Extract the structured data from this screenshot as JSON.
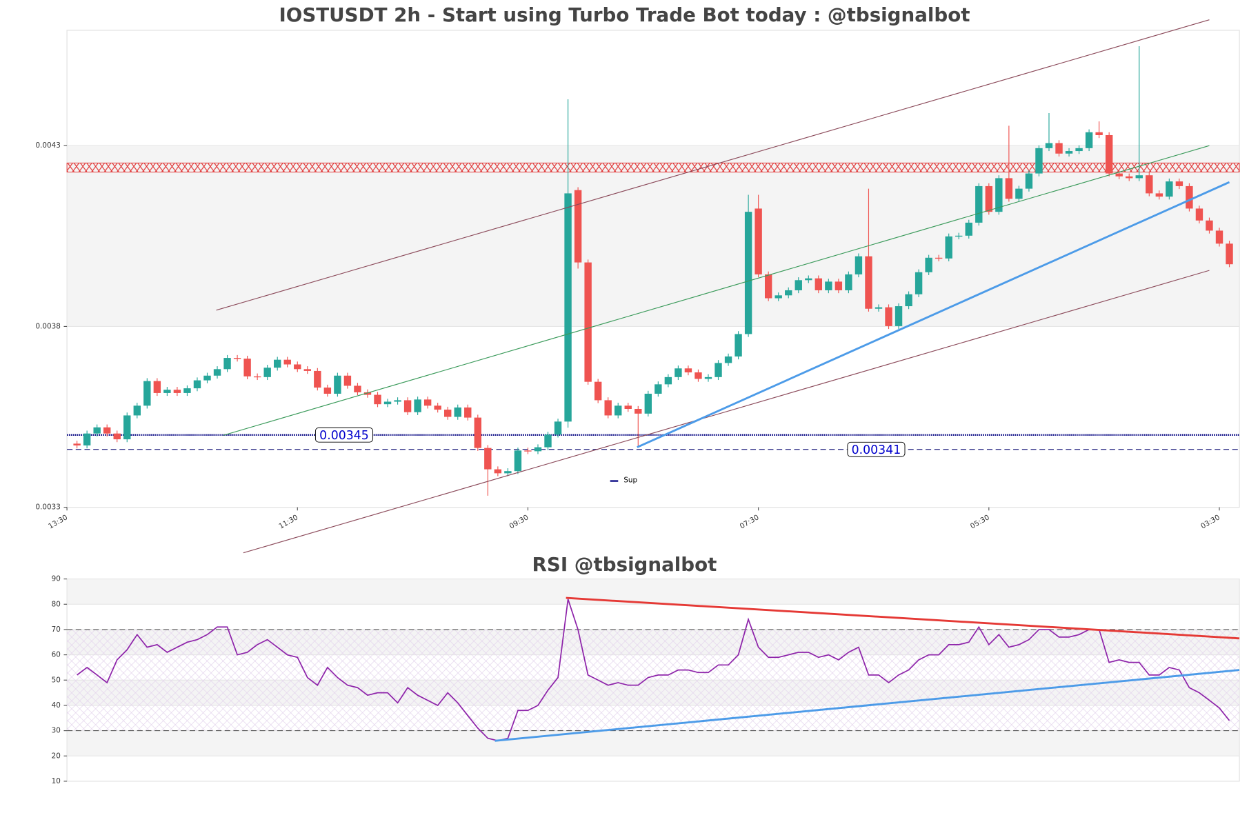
{
  "chart_data": [
    {
      "type": "candlestick",
      "title": "IOSTUSDT 2h - Start using Turbo Trade Bot today : @tbsignalbot",
      "up_color": "#26a69a",
      "down_color": "#ef5350",
      "xlim": [
        -1,
        116
      ],
      "xticks": [
        {
          "value": -1,
          "label": "13:30"
        },
        {
          "value": 22,
          "label": "11:30"
        },
        {
          "value": 45,
          "label": "09:30"
        },
        {
          "value": 68,
          "label": "07:30"
        },
        {
          "value": 91,
          "label": "05:30"
        },
        {
          "value": 114,
          "label": "03:30"
        }
      ],
      "ylim": [
        0.00325,
        0.004569
      ],
      "yticks": [
        {
          "value": 0.00325,
          "label": "0.0033"
        },
        {
          "value": 0.00375,
          "label": "0.0038"
        },
        {
          "value": 0.00425,
          "label": "0.0043"
        }
      ],
      "open": [
        0.003426,
        0.003421,
        0.003454,
        0.003471,
        0.003454,
        0.003438,
        0.003504,
        0.003531,
        0.003599,
        0.003566,
        0.003575,
        0.003566,
        0.003579,
        0.003601,
        0.003614,
        0.003632,
        0.003663,
        0.003661,
        0.003612,
        0.00361,
        0.003636,
        0.003658,
        0.003645,
        0.003632,
        0.003627,
        0.003581,
        0.003564,
        0.003614,
        0.003586,
        0.003568,
        0.003561,
        0.003535,
        0.003542,
        0.003546,
        0.003513,
        0.003548,
        0.003531,
        0.00352,
        0.0035,
        0.003526,
        0.003498,
        0.003414,
        0.003355,
        0.003344,
        0.00335,
        0.003407,
        0.003405,
        0.003416,
        0.003451,
        0.003487,
        0.004127,
        0.003927,
        0.003597,
        0.003546,
        0.003504,
        0.003531,
        0.003522,
        0.003509,
        0.003564,
        0.00359,
        0.00361,
        0.003634,
        0.003623,
        0.003605,
        0.00361,
        0.003649,
        0.003667,
        0.003729,
        0.004076,
        0.003894,
        0.003828,
        0.003836,
        0.00385,
        0.003878,
        0.003883,
        0.00385,
        0.003874,
        0.00385,
        0.003894,
        0.003944,
        0.003799,
        0.003803,
        0.003751,
        0.003806,
        0.003839,
        0.0039,
        0.00394,
        0.003938,
        0.003999,
        0.004001,
        0.004037,
        0.004138,
        0.004067,
        0.00416,
        0.004103,
        0.004131,
        0.004173,
        0.004243,
        0.004257,
        0.004228,
        0.004235,
        0.004243,
        0.004287,
        0.004279,
        0.004173,
        0.004165,
        0.00416,
        0.004168,
        0.004118,
        0.004109,
        0.004151,
        0.004138,
        0.004076,
        0.004043,
        0.004015,
        0.003979
      ],
      "high": [
        0.003434,
        0.003462,
        0.003479,
        0.003479,
        0.003462,
        0.003512,
        0.003539,
        0.003607,
        0.003607,
        0.003583,
        0.003583,
        0.003587,
        0.003609,
        0.003622,
        0.00364,
        0.003671,
        0.003671,
        0.003669,
        0.00362,
        0.003644,
        0.003666,
        0.003666,
        0.003653,
        0.00364,
        0.003635,
        0.003589,
        0.003622,
        0.003622,
        0.003594,
        0.003576,
        0.003569,
        0.00355,
        0.003554,
        0.003554,
        0.003556,
        0.003556,
        0.003539,
        0.003528,
        0.003534,
        0.003534,
        0.003506,
        0.003422,
        0.003363,
        0.003358,
        0.003415,
        0.003415,
        0.003424,
        0.003459,
        0.003495,
        0.004378,
        0.004135,
        0.003935,
        0.003605,
        0.003554,
        0.003539,
        0.003539,
        0.00353,
        0.003572,
        0.003598,
        0.003618,
        0.003642,
        0.003642,
        0.003631,
        0.003618,
        0.003657,
        0.003675,
        0.003737,
        0.004114,
        0.004114,
        0.003902,
        0.003844,
        0.003858,
        0.003886,
        0.003891,
        0.003891,
        0.003882,
        0.003882,
        0.003902,
        0.003952,
        0.004131,
        0.003811,
        0.003811,
        0.003814,
        0.003847,
        0.003908,
        0.003948,
        0.003948,
        0.004007,
        0.004009,
        0.004045,
        0.004146,
        0.004146,
        0.004168,
        0.004305,
        0.004139,
        0.004181,
        0.004251,
        0.00434,
        0.004265,
        0.004243,
        0.004251,
        0.004295,
        0.004317,
        0.004287,
        0.004181,
        0.004173,
        0.004525,
        0.004176,
        0.004126,
        0.004159,
        0.004159,
        0.004146,
        0.004084,
        0.004051,
        0.004023,
        0.003987
      ],
      "low": [
        0.003413,
        0.003413,
        0.003446,
        0.003446,
        0.00343,
        0.00343,
        0.003496,
        0.003523,
        0.003558,
        0.003558,
        0.003558,
        0.003558,
        0.003571,
        0.003593,
        0.003606,
        0.003624,
        0.003653,
        0.003604,
        0.003602,
        0.003602,
        0.003628,
        0.003637,
        0.003624,
        0.003619,
        0.003573,
        0.003556,
        0.003556,
        0.003578,
        0.00356,
        0.003553,
        0.003527,
        0.003527,
        0.003534,
        0.003505,
        0.003505,
        0.003523,
        0.003512,
        0.003492,
        0.003492,
        0.00349,
        0.003406,
        0.003282,
        0.003336,
        0.003336,
        0.003342,
        0.003397,
        0.003397,
        0.003408,
        0.003443,
        0.00347,
        0.00391,
        0.003589,
        0.003538,
        0.003496,
        0.003496,
        0.003514,
        0.00342,
        0.003501,
        0.003556,
        0.003582,
        0.003602,
        0.003615,
        0.003597,
        0.003597,
        0.003602,
        0.003641,
        0.003659,
        0.003721,
        0.003886,
        0.00382,
        0.00382,
        0.003828,
        0.003842,
        0.00387,
        0.003842,
        0.003842,
        0.003842,
        0.003842,
        0.003886,
        0.003791,
        0.003791,
        0.003743,
        0.003743,
        0.003798,
        0.003831,
        0.003892,
        0.00393,
        0.00393,
        0.003991,
        0.003993,
        0.004029,
        0.004059,
        0.004059,
        0.004095,
        0.004095,
        0.004123,
        0.004165,
        0.004235,
        0.00422,
        0.00422,
        0.004227,
        0.004235,
        0.004271,
        0.004165,
        0.004157,
        0.004152,
        0.004152,
        0.00411,
        0.004101,
        0.004101,
        0.00413,
        0.004068,
        0.004035,
        0.004007,
        0.003971,
        0.003914
      ],
      "close": [
        0.003421,
        0.003454,
        0.003471,
        0.003454,
        0.003438,
        0.003504,
        0.003531,
        0.003599,
        0.003566,
        0.003575,
        0.003566,
        0.003579,
        0.003601,
        0.003614,
        0.003632,
        0.003663,
        0.003661,
        0.003612,
        0.00361,
        0.003636,
        0.003658,
        0.003645,
        0.003632,
        0.003627,
        0.003581,
        0.003564,
        0.003614,
        0.003586,
        0.003568,
        0.003561,
        0.003535,
        0.003542,
        0.003546,
        0.003513,
        0.003548,
        0.003531,
        0.00352,
        0.0035,
        0.003526,
        0.003498,
        0.003414,
        0.003355,
        0.003344,
        0.00335,
        0.003407,
        0.003405,
        0.003416,
        0.003451,
        0.003487,
        0.004118,
        0.003927,
        0.003597,
        0.003546,
        0.003504,
        0.003531,
        0.003522,
        0.003509,
        0.003564,
        0.00359,
        0.00361,
        0.003634,
        0.003623,
        0.003605,
        0.00361,
        0.003649,
        0.003667,
        0.003729,
        0.004067,
        0.003894,
        0.003828,
        0.003836,
        0.00385,
        0.003878,
        0.003883,
        0.00385,
        0.003874,
        0.00385,
        0.003894,
        0.003944,
        0.003799,
        0.003803,
        0.003751,
        0.003806,
        0.003839,
        0.0039,
        0.00394,
        0.003938,
        0.003999,
        0.004001,
        0.004037,
        0.004138,
        0.004067,
        0.00416,
        0.004103,
        0.004131,
        0.004173,
        0.004243,
        0.004257,
        0.004228,
        0.004235,
        0.004243,
        0.004287,
        0.004279,
        0.004173,
        0.004165,
        0.00416,
        0.004168,
        0.004118,
        0.004109,
        0.004151,
        0.004138,
        0.004076,
        0.004043,
        0.004015,
        0.003979,
        0.003922
      ],
      "resistance_zone": [
        0.004177,
        0.004202
      ],
      "levels": [
        {
          "name": "Sup",
          "value": 0.00345,
          "label": "0.00345",
          "style": "dotted",
          "color": "#000080"
        },
        {
          "value": 0.00341,
          "label": "0.00341",
          "style": "dashed",
          "color": "#3a3a8c"
        }
      ],
      "legend": "lower center",
      "trendlines": [
        {
          "color": "#8b4a5a",
          "points": [
            [
              13.9,
              0.003795
            ],
            [
              113,
              0.004598
            ]
          ]
        },
        {
          "color": "#8b4a5a",
          "points": [
            [
              16.6,
              0.003124
            ],
            [
              113,
              0.003905
            ]
          ]
        },
        {
          "color": "#3a9a5a",
          "points": [
            [
              14.6,
              0.003449
            ],
            [
              113,
              0.00425
            ]
          ]
        },
        {
          "color": "#4c9be8",
          "width": 2.5,
          "points": [
            [
              55.9,
              0.003416
            ],
            [
              115,
              0.004149
            ]
          ]
        }
      ]
    },
    {
      "type": "line",
      "title": "RSI @tbsignalbot",
      "color": "#8e24aa",
      "xlim": [
        -1,
        116
      ],
      "ylim": [
        10,
        90
      ],
      "yticks": [
        10,
        20,
        30,
        40,
        50,
        60,
        70,
        80,
        90
      ],
      "levels": [
        30,
        70
      ],
      "values": [
        52,
        55,
        52,
        49,
        58,
        62,
        68,
        63,
        64,
        61,
        63,
        65,
        66,
        68,
        71,
        71,
        60,
        61,
        64,
        66,
        63,
        60,
        59,
        51,
        48,
        55,
        51,
        48,
        47,
        44,
        45,
        45,
        41,
        47,
        44,
        42,
        40,
        45,
        41,
        36,
        31,
        27,
        26,
        27,
        38,
        38,
        40,
        46,
        51,
        82,
        70,
        52,
        50,
        48,
        49,
        48,
        48,
        51,
        52,
        52,
        54,
        54,
        53,
        53,
        56,
        56,
        60,
        74,
        63,
        59,
        59,
        60,
        61,
        61,
        59,
        60,
        58,
        61,
        63,
        52,
        52,
        49,
        52,
        54,
        58,
        60,
        60,
        64,
        64,
        65,
        71,
        64,
        68,
        63,
        64,
        66,
        70,
        70,
        67,
        67,
        68,
        70,
        70,
        57,
        58,
        57,
        57,
        52,
        52,
        55,
        54,
        47,
        45,
        42,
        39,
        34
      ],
      "trendlines": [
        {
          "color": "#e53935",
          "points": [
            [
              48.8,
              82.5
            ],
            [
              116,
              66.5
            ]
          ]
        },
        {
          "color": "#4c9be8",
          "points": [
            [
              41.7,
              26
            ],
            [
              116,
              54
            ]
          ]
        }
      ]
    }
  ]
}
